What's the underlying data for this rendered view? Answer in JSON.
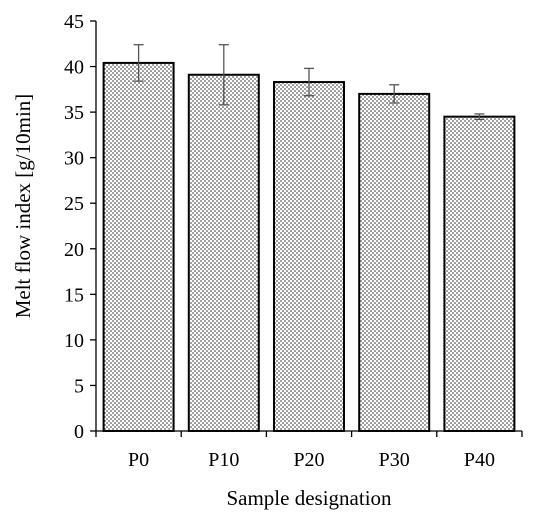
{
  "chart_data": {
    "type": "bar",
    "title": "",
    "xlabel": "Sample designation",
    "ylabel": "Melt flow index [g/10min]",
    "categories": [
      "P0",
      "P10",
      "P20",
      "P30",
      "P40"
    ],
    "values": [
      40.4,
      39.1,
      38.3,
      37.0,
      34.5
    ],
    "error": [
      2.0,
      3.3,
      1.5,
      1.0,
      0.3
    ],
    "ylim": [
      0,
      45
    ],
    "yticks": [
      0,
      5,
      10,
      15,
      20,
      25,
      30,
      35,
      40,
      45
    ],
    "grid": false,
    "legend": "none",
    "bar_fill_pattern": "dotted",
    "colors": {
      "bar_fill": "#ffffff",
      "bar_dots": "#222222",
      "bar_edge": "#000000",
      "error_bar": "#555555",
      "axis": "#000000"
    }
  }
}
